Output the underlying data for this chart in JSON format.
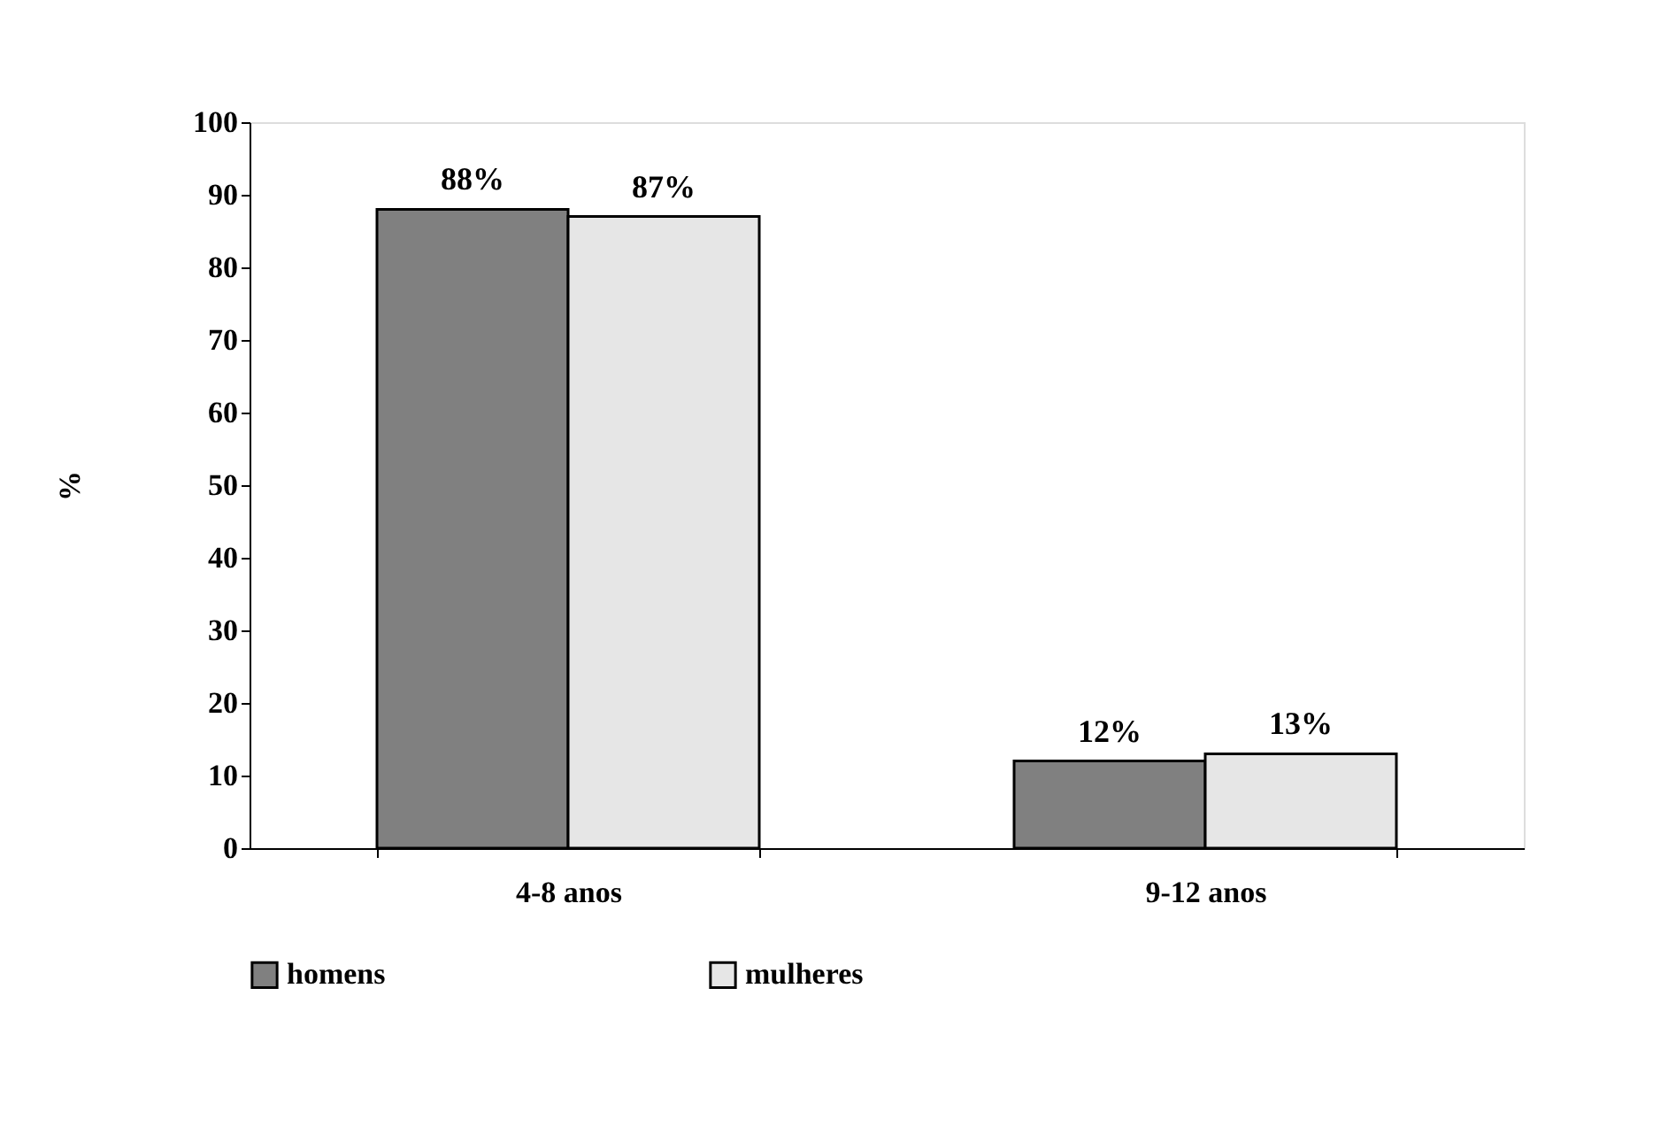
{
  "chart_data": {
    "type": "bar",
    "ylabel": "%",
    "categories": [
      "4-8 anos",
      "9-12 anos"
    ],
    "series": [
      {
        "name": "homens",
        "color": "#808080",
        "values": [
          88,
          12
        ],
        "value_labels": [
          "88%",
          "12%"
        ]
      },
      {
        "name": "mulheres",
        "color": "#e6e6e6",
        "values": [
          87,
          13
        ],
        "value_labels": [
          "87%",
          "13%"
        ]
      }
    ],
    "ylim": [
      0,
      100
    ],
    "yticks": [
      0,
      10,
      20,
      30,
      40,
      50,
      60,
      70,
      80,
      90,
      100
    ],
    "grid": false,
    "legend": "bottom"
  }
}
